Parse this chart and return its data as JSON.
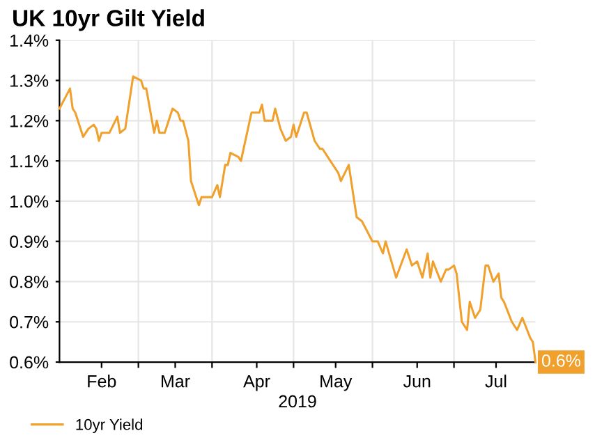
{
  "chart_data": {
    "type": "line",
    "title": "UK 10yr Gilt Yield",
    "xlabel": "2019",
    "x": [
      "2019-01-16",
      "2019-01-20",
      "2019-01-21",
      "2019-01-22",
      "2019-01-25",
      "2019-01-27",
      "2019-01-29",
      "2019-01-30",
      "2019-01-31",
      "2019-02-01",
      "2019-02-04",
      "2019-02-07",
      "2019-02-08",
      "2019-02-10",
      "2019-02-13",
      "2019-02-16",
      "2019-02-17",
      "2019-02-18",
      "2019-02-21",
      "2019-02-22",
      "2019-02-23",
      "2019-02-25",
      "2019-02-28",
      "2019-03-02",
      "2019-03-03",
      "2019-03-04",
      "2019-03-06",
      "2019-03-07",
      "2019-03-10",
      "2019-03-11",
      "2019-03-14",
      "2019-03-15",
      "2019-03-17",
      "2019-03-18",
      "2019-03-20",
      "2019-03-21",
      "2019-03-22",
      "2019-03-25",
      "2019-03-26",
      "2019-03-30",
      "2019-03-31",
      "2019-04-02",
      "2019-04-03",
      "2019-04-04",
      "2019-04-07",
      "2019-04-08",
      "2019-04-10",
      "2019-04-12",
      "2019-04-14",
      "2019-04-15",
      "2019-04-16",
      "2019-04-19",
      "2019-04-20",
      "2019-04-23",
      "2019-04-25",
      "2019-04-26",
      "2019-04-28",
      "2019-04-29",
      "2019-05-01",
      "2019-05-02",
      "2019-05-03",
      "2019-05-06",
      "2019-05-09",
      "2019-05-11",
      "2019-05-15",
      "2019-05-17",
      "2019-05-19",
      "2019-05-20",
      "2019-05-24",
      "2019-05-28",
      "2019-05-30",
      "2019-06-01",
      "2019-06-03",
      "2019-06-05",
      "2019-06-06",
      "2019-06-07",
      "2019-06-10",
      "2019-06-12",
      "2019-06-13",
      "2019-06-15",
      "2019-06-16",
      "2019-06-18",
      "2019-06-20",
      "2019-06-21",
      "2019-06-23",
      "2019-06-25",
      "2019-06-27",
      "2019-06-28",
      "2019-06-30",
      "2019-07-02",
      "2019-07-03",
      "2019-07-04",
      "2019-07-07",
      "2019-07-09",
      "2019-07-11",
      "2019-07-14",
      "2019-07-15",
      "2019-07-16"
    ],
    "series": [
      {
        "name": "10yr Yield",
        "color": "#f0a02c",
        "values": [
          1.23,
          1.28,
          1.23,
          1.22,
          1.16,
          1.18,
          1.19,
          1.18,
          1.15,
          1.17,
          1.17,
          1.21,
          1.17,
          1.18,
          1.31,
          1.3,
          1.28,
          1.28,
          1.17,
          1.2,
          1.17,
          1.17,
          1.23,
          1.22,
          1.2,
          1.2,
          1.15,
          1.05,
          0.99,
          1.01,
          1.01,
          1.01,
          1.04,
          1.01,
          1.09,
          1.09,
          1.12,
          1.11,
          1.1,
          1.22,
          1.22,
          1.22,
          1.24,
          1.2,
          1.2,
          1.23,
          1.18,
          1.15,
          1.16,
          1.19,
          1.16,
          1.22,
          1.22,
          1.15,
          1.13,
          1.13,
          1.11,
          1.1,
          1.08,
          1.07,
          1.05,
          1.09,
          0.96,
          0.95,
          0.9,
          0.9,
          0.87,
          0.9,
          0.81,
          0.88,
          0.84,
          0.85,
          0.81,
          0.87,
          0.81,
          0.85,
          0.8,
          0.83,
          0.83,
          0.84,
          0.82,
          0.7,
          0.68,
          0.75,
          0.71,
          0.73,
          0.84,
          0.84,
          0.8,
          0.82,
          0.76,
          0.75,
          0.7,
          0.68,
          0.71,
          0.66,
          0.65,
          0.6
        ]
      }
    ],
    "xlim": [
      "2019-01-16",
      "2019-07-16"
    ],
    "xticks": [
      {
        "value": "2019-02-01",
        "label": "Feb"
      },
      {
        "value": "2019-02-15",
        "label": null
      },
      {
        "value": "2019-03-01",
        "label": "Mar"
      },
      {
        "value": "2019-03-15",
        "label": null
      },
      {
        "value": "2019-04-01",
        "label": "Apr"
      },
      {
        "value": "2019-04-15",
        "label": null
      },
      {
        "value": "2019-05-01",
        "label": "May"
      },
      {
        "value": "2019-05-15",
        "label": null
      },
      {
        "value": "2019-06-01",
        "label": "Jun"
      },
      {
        "value": "2019-06-15",
        "label": null
      },
      {
        "value": "2019-07-01",
        "label": "Jul"
      }
    ],
    "ylim": [
      0.6,
      1.4
    ],
    "yticks": [
      {
        "value": 0.6,
        "label": "0.6%"
      },
      {
        "value": 0.7,
        "label": "0.7%"
      },
      {
        "value": 0.8,
        "label": "0.8%"
      },
      {
        "value": 0.9,
        "label": "0.9%"
      },
      {
        "value": 1.0,
        "label": "1.0%"
      },
      {
        "value": 1.1,
        "label": "1.1%"
      },
      {
        "value": 1.2,
        "label": "1.2%"
      },
      {
        "value": 1.3,
        "label": "1.3%"
      },
      {
        "value": 1.4,
        "label": "1.4%"
      }
    ],
    "annotations": [
      {
        "text": "0.6%",
        "x": "2019-07-16",
        "y": 0.6
      }
    ],
    "grid": true,
    "legend": "bottom left",
    "marker": "none",
    "line_style": "solid"
  }
}
